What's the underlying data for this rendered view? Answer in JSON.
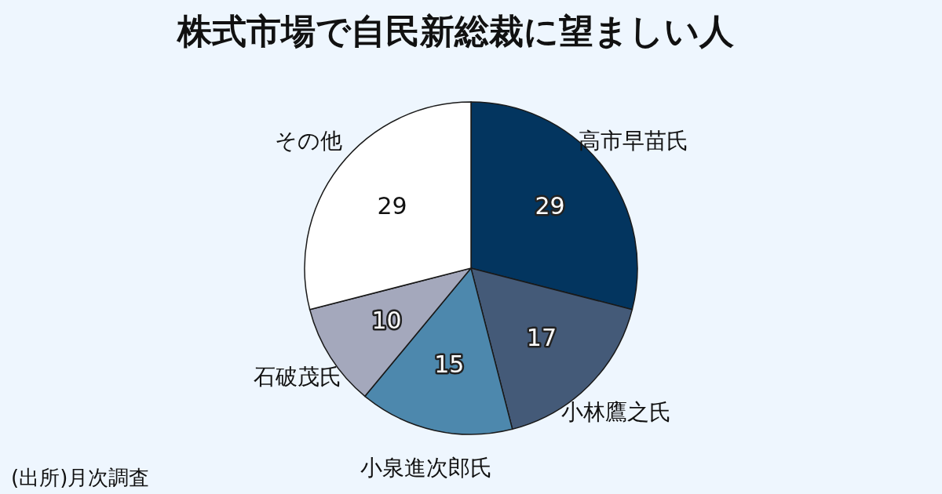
{
  "chart_data": {
    "type": "pie",
    "title": "株式市場で自民新総裁に望ましい人",
    "categories": [
      "高市早苗氏",
      "小林鷹之氏",
      "小泉進次郎氏",
      "石破茂氏",
      "その他"
    ],
    "values": [
      29,
      17,
      15,
      10,
      29
    ],
    "colors": [
      "#03355f",
      "#445a78",
      "#4d88ad",
      "#a4a8bc",
      "#ffffff"
    ],
    "data_labels": true,
    "annotations": [
      "(出所)月次調査"
    ]
  }
}
